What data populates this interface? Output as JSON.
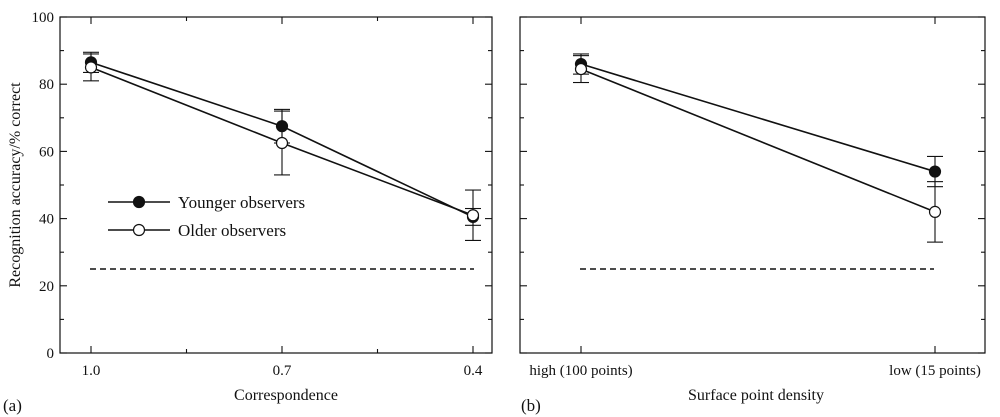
{
  "chart_data": [
    {
      "type": "line",
      "panel_label": "(a)",
      "ylabel": "Recognition accuracy/% correct",
      "xlabel": "Correspondence",
      "categories": [
        "1.0",
        "0.7",
        "0.4"
      ],
      "ylim": [
        0,
        100
      ],
      "yticks": [
        "0",
        "20",
        "40",
        "60",
        "80",
        "100"
      ],
      "chance_level": 25,
      "legend": {
        "position": "center-left",
        "entries": [
          "Younger observers",
          "Older observers"
        ]
      },
      "series": [
        {
          "name": "Younger observers",
          "marker": "filled-circle",
          "values": [
            86.5,
            67.5,
            40.5
          ],
          "errors": [
            3.0,
            5.0,
            2.5
          ]
        },
        {
          "name": "Older observers",
          "marker": "open-circle",
          "values": [
            85.0,
            62.5,
            41.0
          ],
          "errors": [
            4.0,
            9.5,
            7.5
          ]
        }
      ]
    },
    {
      "type": "line",
      "panel_label": "(b)",
      "ylabel": "",
      "xlabel": "Surface point density",
      "categories": [
        "high (100 points)",
        "low (15 points)"
      ],
      "ylim": [
        0,
        100
      ],
      "chance_level": 25,
      "series": [
        {
          "name": "Younger observers",
          "marker": "filled-circle",
          "values": [
            86.0,
            54.0
          ],
          "errors": [
            3.0,
            4.5
          ]
        },
        {
          "name": "Older observers",
          "marker": "open-circle",
          "values": [
            84.5,
            42.0
          ],
          "errors": [
            4.0,
            9.0
          ]
        }
      ]
    }
  ]
}
